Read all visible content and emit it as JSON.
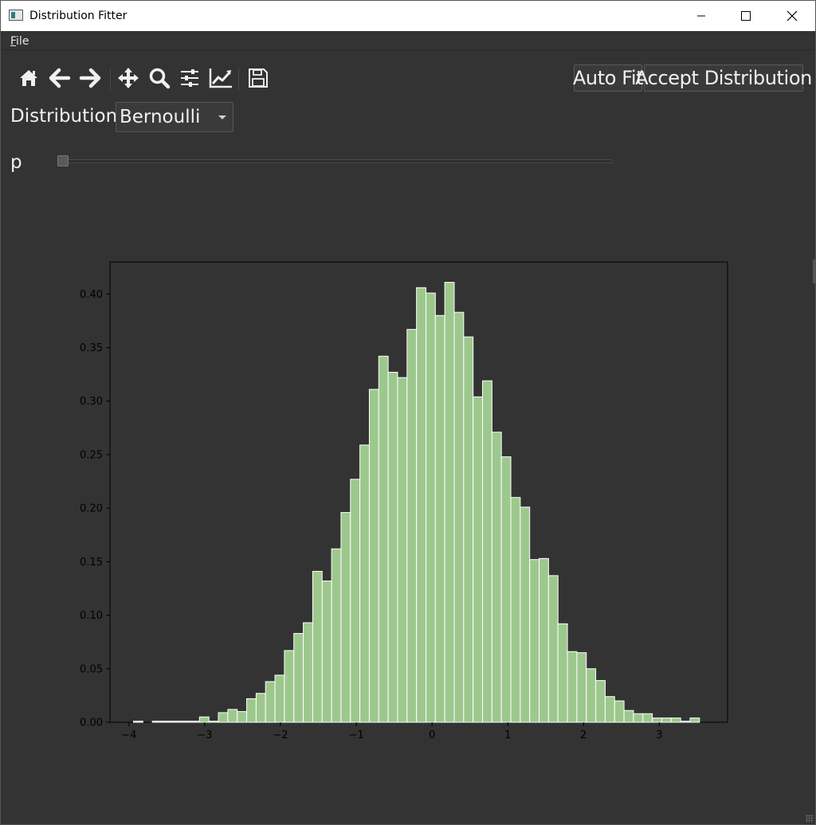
{
  "window": {
    "title": "Distribution Fitter"
  },
  "menu": {
    "file_label": "File",
    "file_mnemonic": "F",
    "file_rest": "ile"
  },
  "toolbar": {
    "icons": [
      "home-icon",
      "back-icon",
      "forward-icon",
      "pan-icon",
      "zoom-icon",
      "configure-subplots-icon",
      "edit-axis-icon",
      "save-icon"
    ],
    "auto_fit_label": "Auto Fit",
    "accept_label": "Accept Distribution"
  },
  "distribution": {
    "label": "Distribution:",
    "selected": "Bernoulli"
  },
  "parameter": {
    "label": "p",
    "value": 0
  },
  "colors": {
    "background": "#333333",
    "bar_fill": "#9dc88d",
    "bar_edge": "#ffffff",
    "axis": "#000000"
  },
  "chart_data": {
    "type": "bar",
    "title": "",
    "xlabel": "",
    "ylabel": "",
    "xlim": [
      -4.25,
      3.9
    ],
    "ylim": [
      0,
      0.43
    ],
    "grid": false,
    "x_ticks": [
      -4,
      -3,
      -2,
      -1,
      0,
      1,
      2,
      3
    ],
    "x_tick_labels": [
      "−4",
      "−3",
      "−2",
      "−1",
      "0",
      "1",
      "2",
      "3"
    ],
    "y_ticks": [
      0,
      0.05,
      0.1,
      0.15,
      0.2,
      0.25,
      0.3,
      0.35,
      0.4
    ],
    "y_tick_labels": [
      "0.00",
      "0.05",
      "0.10",
      "0.15",
      "0.20",
      "0.25",
      "0.30",
      "0.35",
      "0.40"
    ],
    "bin_start": -3.94,
    "bin_width": 0.1245,
    "values": [
      0.001,
      0,
      0.001,
      0.001,
      0.001,
      0.001,
      0.001,
      0.005,
      0.001,
      0.009,
      0.012,
      0.01,
      0.022,
      0.027,
      0.038,
      0.044,
      0.067,
      0.083,
      0.093,
      0.141,
      0.132,
      0.162,
      0.196,
      0.227,
      0.259,
      0.311,
      0.342,
      0.327,
      0.322,
      0.367,
      0.406,
      0.401,
      0.38,
      0.411,
      0.383,
      0.36,
      0.304,
      0.319,
      0.271,
      0.248,
      0.21,
      0.201,
      0.152,
      0.153,
      0.137,
      0.092,
      0.066,
      0.065,
      0.05,
      0.039,
      0.024,
      0.02,
      0.011,
      0.008,
      0.008,
      0.004,
      0.004,
      0.004,
      0.001,
      0.004
    ]
  }
}
